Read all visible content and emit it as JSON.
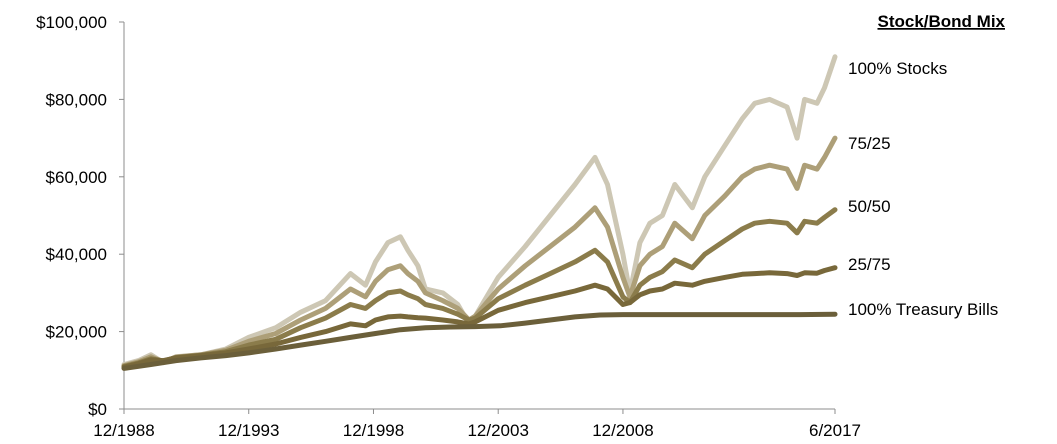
{
  "chart_data": {
    "type": "line",
    "title": "",
    "xlabel": "",
    "ylabel": "",
    "legend_title": "Stock/Bond Mix",
    "ylim": [
      0,
      100000
    ],
    "y_ticks": [
      "$0",
      "$20,000",
      "$40,000",
      "$60,000",
      "$80,000",
      "$100,000"
    ],
    "y_tick_values": [
      0,
      20000,
      40000,
      60000,
      80000,
      100000
    ],
    "x_ticks": [
      "12/1988",
      "12/1993",
      "12/1998",
      "12/2003",
      "12/2008",
      "6/2017"
    ],
    "x_tick_values": [
      1988.92,
      1993.92,
      1998.92,
      2003.92,
      2008.92,
      2017.42
    ],
    "xlim": [
      1988.92,
      2017.42
    ],
    "series": [
      {
        "name": "100% Stocks",
        "color": "#cdc7b4",
        "x": [
          1988.92,
          1989.5,
          1990.0,
          1990.5,
          1991.0,
          1992.0,
          1993.0,
          1993.92,
          1995.0,
          1996.0,
          1997.0,
          1998.0,
          1998.6,
          1999.0,
          1999.5,
          2000.0,
          2000.3,
          2000.7,
          2001.0,
          2001.7,
          2002.3,
          2002.75,
          2003.0,
          2003.92,
          2005.0,
          2006.0,
          2007.0,
          2007.8,
          2008.3,
          2008.92,
          2009.2,
          2009.6,
          2010.0,
          2010.5,
          2011.0,
          2011.7,
          2012.2,
          2013.0,
          2013.7,
          2014.2,
          2014.8,
          2015.5,
          2015.9,
          2016.2,
          2016.7,
          2017.0,
          2017.42
        ],
        "y": [
          11500,
          12500,
          14000,
          12000,
          13500,
          14000,
          15500,
          18500,
          21000,
          25000,
          28000,
          35000,
          32000,
          38000,
          43000,
          44500,
          41000,
          37000,
          31000,
          30000,
          27000,
          22000,
          24000,
          34000,
          42000,
          50000,
          58000,
          65000,
          58000,
          40000,
          30000,
          43000,
          48000,
          50000,
          58000,
          52000,
          60000,
          68000,
          75000,
          79000,
          80000,
          78000,
          70000,
          80000,
          79000,
          83000,
          91000
        ]
      },
      {
        "name": "75/25",
        "color": "#ad9f78",
        "x": [
          1988.92,
          1989.5,
          1990.0,
          1990.5,
          1991.0,
          1992.0,
          1993.0,
          1993.92,
          1995.0,
          1996.0,
          1997.0,
          1998.0,
          1998.6,
          1999.0,
          1999.5,
          2000.0,
          2000.3,
          2000.7,
          2001.0,
          2001.7,
          2002.3,
          2002.75,
          2003.0,
          2003.92,
          2005.0,
          2006.0,
          2007.0,
          2007.8,
          2008.3,
          2008.92,
          2009.2,
          2009.6,
          2010.0,
          2010.5,
          2011.0,
          2011.7,
          2012.2,
          2013.0,
          2013.7,
          2014.2,
          2014.8,
          2015.5,
          2015.9,
          2016.2,
          2016.7,
          2017.0,
          2017.42
        ],
        "y": [
          11200,
          12200,
          13500,
          12200,
          13400,
          14000,
          15200,
          17500,
          19500,
          23000,
          26000,
          31000,
          29000,
          33000,
          36000,
          37000,
          35000,
          33000,
          30000,
          28000,
          26000,
          23000,
          24000,
          31000,
          37000,
          42000,
          47000,
          52000,
          47000,
          34000,
          29000,
          37000,
          40000,
          42000,
          48000,
          44000,
          50000,
          55000,
          60000,
          62000,
          63000,
          62000,
          57000,
          63000,
          62000,
          65000,
          70000
        ]
      },
      {
        "name": "50/50",
        "color": "#8b7c4b",
        "x": [
          1988.92,
          1989.5,
          1990.0,
          1990.5,
          1991.0,
          1992.0,
          1993.0,
          1993.92,
          1995.0,
          1996.0,
          1997.0,
          1998.0,
          1998.6,
          1999.0,
          1999.5,
          2000.0,
          2000.3,
          2000.7,
          2001.0,
          2001.7,
          2002.3,
          2002.75,
          2003.0,
          2003.92,
          2005.0,
          2006.0,
          2007.0,
          2007.8,
          2008.3,
          2008.92,
          2009.2,
          2009.6,
          2010.0,
          2010.5,
          2011.0,
          2011.7,
          2012.2,
          2013.0,
          2013.7,
          2014.2,
          2014.8,
          2015.5,
          2015.9,
          2016.2,
          2016.7,
          2017.0,
          2017.42
        ],
        "y": [
          11000,
          11900,
          13000,
          12400,
          13300,
          13900,
          14800,
          16500,
          18000,
          21000,
          23500,
          27000,
          26000,
          28000,
          30000,
          30500,
          29500,
          28500,
          27000,
          26000,
          24500,
          23000,
          23500,
          28500,
          32000,
          35000,
          38000,
          41000,
          38000,
          29000,
          27500,
          32000,
          34000,
          35500,
          38500,
          36500,
          40000,
          43500,
          46500,
          48000,
          48500,
          48000,
          45500,
          48500,
          48000,
          49500,
          51500
        ]
      },
      {
        "name": "25/75",
        "color": "#78683a",
        "x": [
          1988.92,
          1989.5,
          1990.0,
          1990.5,
          1991.0,
          1992.0,
          1993.0,
          1993.92,
          1995.0,
          1996.0,
          1997.0,
          1998.0,
          1998.6,
          1999.0,
          1999.5,
          2000.0,
          2000.3,
          2000.7,
          2001.0,
          2001.7,
          2002.3,
          2002.75,
          2003.0,
          2003.92,
          2005.0,
          2006.0,
          2007.0,
          2007.8,
          2008.3,
          2008.92,
          2009.2,
          2009.6,
          2010.0,
          2010.5,
          2011.0,
          2011.7,
          2012.2,
          2013.0,
          2013.7,
          2014.2,
          2014.8,
          2015.5,
          2015.9,
          2016.2,
          2016.7,
          2017.0,
          2017.42
        ],
        "y": [
          10800,
          11700,
          12700,
          12500,
          13200,
          13800,
          14500,
          15500,
          16800,
          18500,
          20000,
          22000,
          21500,
          23000,
          23800,
          24000,
          23800,
          23600,
          23500,
          23000,
          22500,
          22000,
          22500,
          25500,
          27500,
          29000,
          30500,
          32000,
          31000,
          27000,
          27500,
          29500,
          30500,
          31000,
          32500,
          32000,
          33000,
          34000,
          34800,
          35000,
          35200,
          35000,
          34500,
          35200,
          35100,
          35800,
          36500
        ]
      },
      {
        "name": "100% Treasury Bills",
        "color": "#6b5f3a",
        "x": [
          1988.92,
          1990.0,
          1991.0,
          1992.0,
          1993.0,
          1993.92,
          1995.0,
          1996.0,
          1997.0,
          1998.0,
          1999.0,
          2000.0,
          2001.0,
          2002.0,
          2003.0,
          2004.0,
          2005.0,
          2006.0,
          2007.0,
          2008.0,
          2008.92,
          2010.0,
          2012.0,
          2014.0,
          2016.0,
          2017.42
        ],
        "y": [
          10500,
          11500,
          12500,
          13200,
          13800,
          14500,
          15500,
          16500,
          17500,
          18500,
          19500,
          20500,
          21000,
          21200,
          21300,
          21500,
          22200,
          23000,
          23800,
          24300,
          24400,
          24400,
          24400,
          24400,
          24400,
          24500
        ]
      }
    ],
    "end_labels": [
      "100% Stocks",
      "75/25",
      "50/50",
      "25/75",
      "100% Treasury Bills"
    ]
  }
}
